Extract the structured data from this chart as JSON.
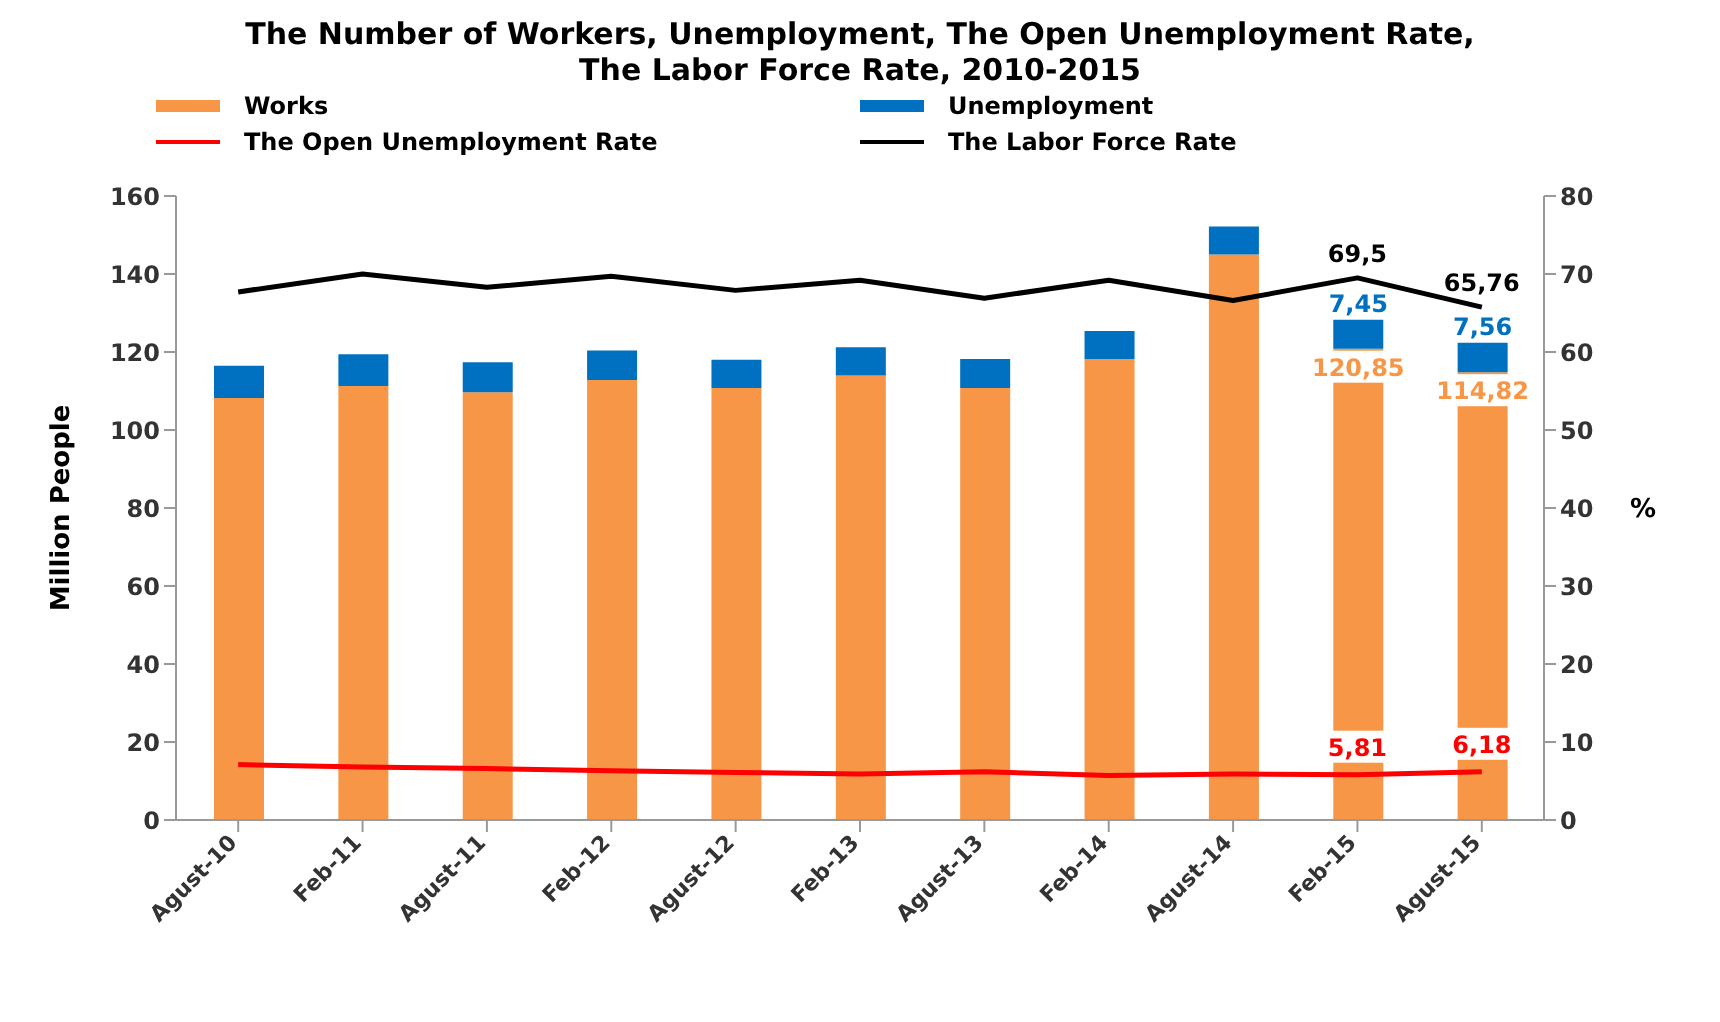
{
  "chart_data": {
    "type": "bar",
    "title": "The Number of Workers, Unemployment, The Open Unemployment Rate,\nThe Labor Force Rate, 2010-2015",
    "categories": [
      "Agust-10",
      "Feb-11",
      "Agust-11",
      "Feb-12",
      "Agust-12",
      "Feb-13",
      "Agust-13",
      "Feb-14",
      "Agust-14",
      "Feb-15",
      "Agust-15"
    ],
    "series": [
      {
        "name": "Works",
        "color": "#f79646",
        "values": [
          108.2,
          111.3,
          109.7,
          112.8,
          110.8,
          114.0,
          110.8,
          118.2,
          145.0,
          120.85,
          114.82
        ],
        "value_labels": [
          null,
          null,
          null,
          null,
          null,
          null,
          null,
          null,
          null,
          "120,85",
          "114,82"
        ]
      },
      {
        "name": "Unemployment",
        "color": "#0070c0",
        "values": [
          8.3,
          8.1,
          7.7,
          7.6,
          7.2,
          7.2,
          7.4,
          7.2,
          7.2,
          7.45,
          7.56
        ],
        "value_labels": [
          null,
          null,
          null,
          null,
          null,
          null,
          null,
          null,
          null,
          "7,45",
          "7,56"
        ]
      },
      {
        "name": "The Open Unemployment Rate",
        "type": "line",
        "axis": "y2",
        "color": "#ff0000",
        "values": [
          7.1,
          6.8,
          6.6,
          6.3,
          6.1,
          5.9,
          6.2,
          5.7,
          5.9,
          5.81,
          6.18
        ],
        "value_labels": [
          null,
          null,
          null,
          null,
          null,
          null,
          null,
          null,
          null,
          "5,81",
          "6,18"
        ]
      },
      {
        "name": "The Labor Force Rate",
        "type": "line",
        "axis": "y2",
        "color": "#000000",
        "values": [
          67.7,
          70.0,
          68.3,
          69.7,
          67.9,
          69.2,
          66.9,
          69.2,
          66.6,
          69.5,
          65.76
        ],
        "value_labels": [
          null,
          null,
          null,
          null,
          null,
          null,
          null,
          null,
          null,
          "69,5",
          "65,76"
        ]
      }
    ],
    "stacked": true,
    "ylabel": "Million People",
    "y2label": "%",
    "ylim": [
      0,
      160
    ],
    "yticks": [
      0,
      20,
      40,
      60,
      80,
      100,
      120,
      140,
      160
    ],
    "y2lim": [
      0,
      80
    ],
    "y2ticks": [
      0,
      10,
      20,
      30,
      40,
      50,
      60,
      70,
      80
    ],
    "grid": false,
    "legend": "top",
    "marker": "none",
    "line_style": "solid"
  }
}
